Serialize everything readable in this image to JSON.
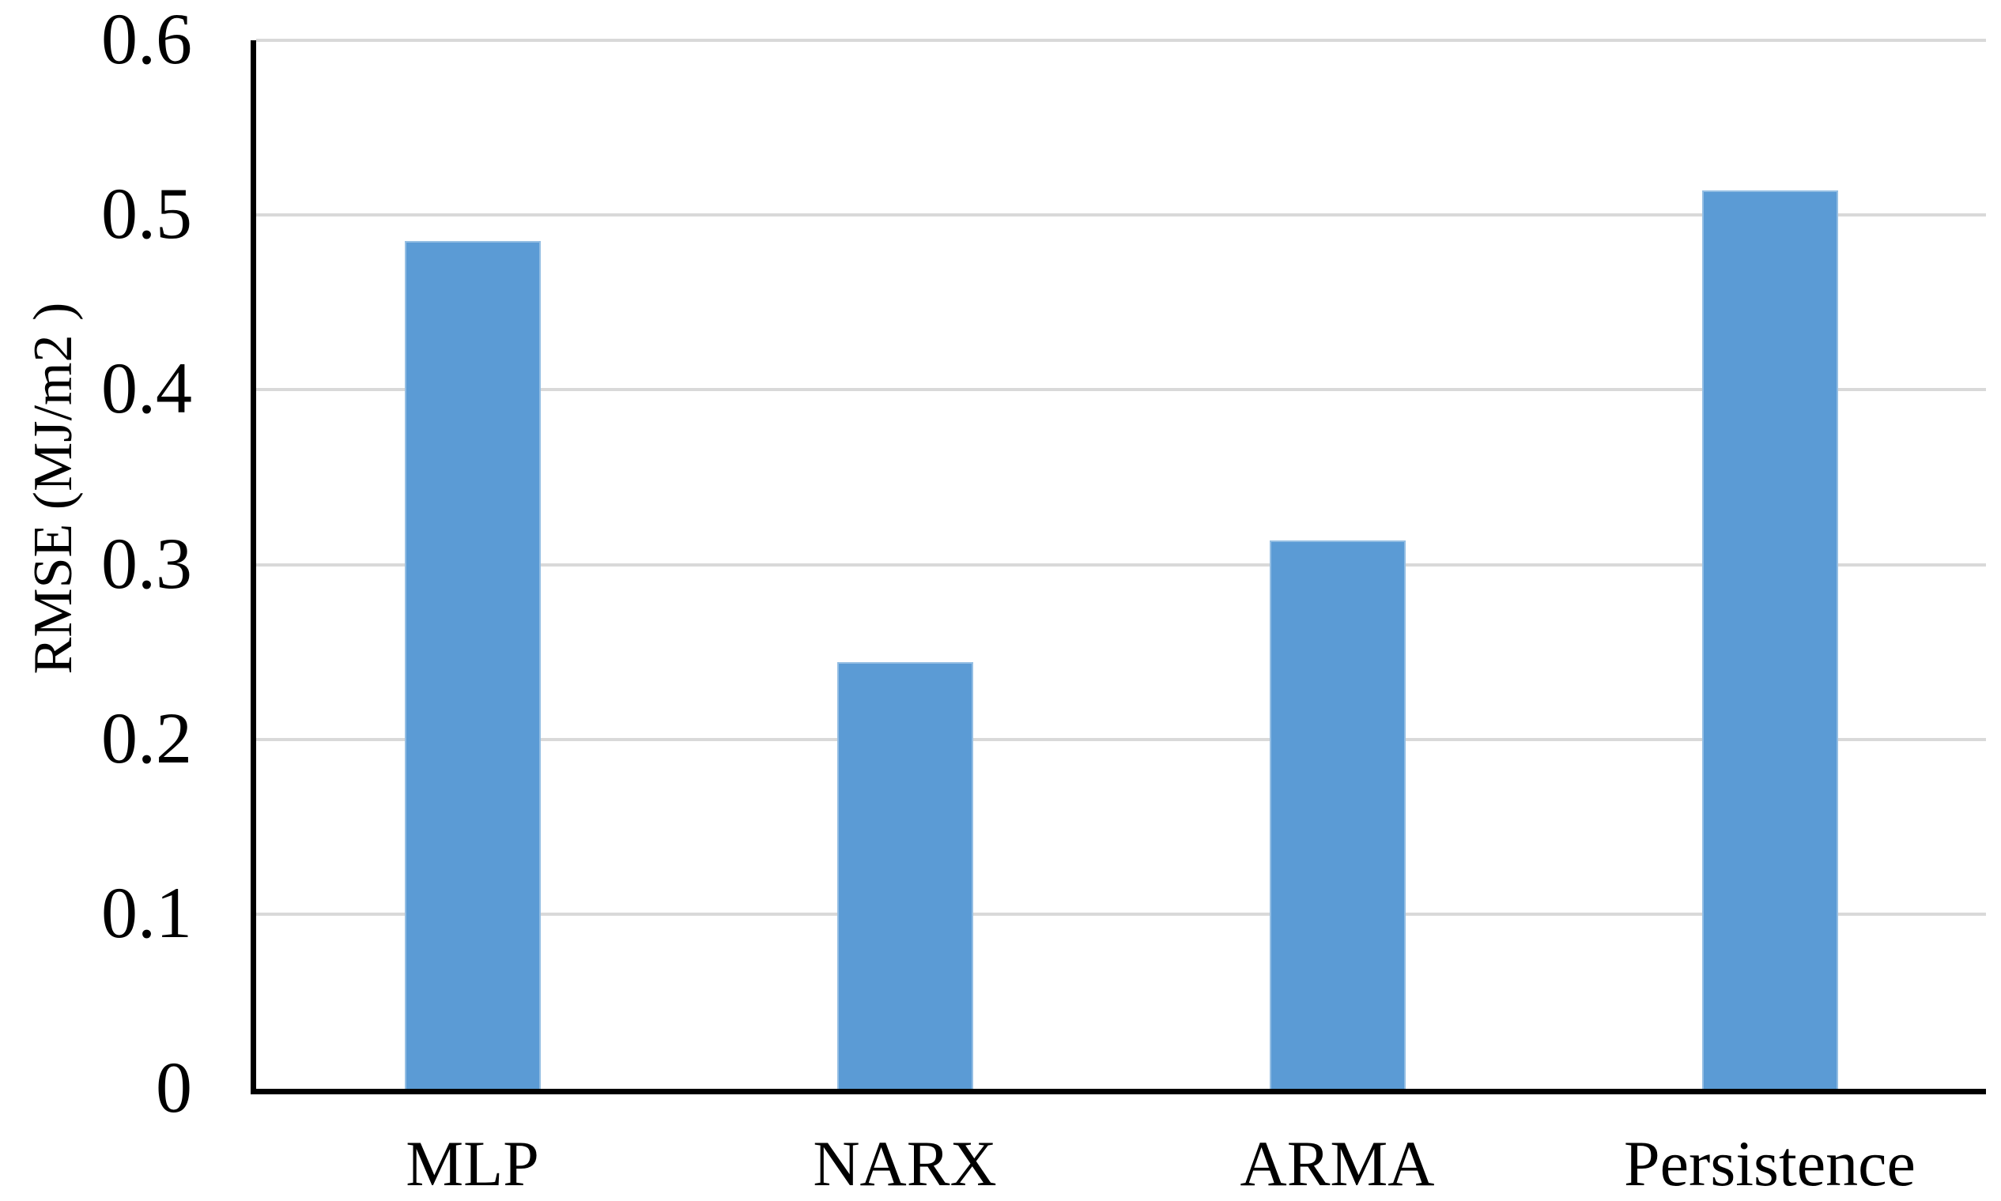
{
  "chart_data": {
    "type": "bar",
    "title": "",
    "categories": [
      "MLP",
      "NARX",
      "ARMA",
      "Persistence"
    ],
    "values": [
      0.485,
      0.244,
      0.314,
      0.514
    ],
    "xlabel": "",
    "ylabel": "RMSE (MJ/m2 )",
    "ylim": [
      0,
      0.6
    ],
    "ytick_step": 0.1,
    "ytick_labels": [
      "0",
      "0.1",
      "0.2",
      "0.3",
      "0.4",
      "0.5",
      "0.6"
    ],
    "grid": true,
    "legend_position": "none",
    "bar_color": "#5b9bd5",
    "gridline_color": "#d9d9d9",
    "axis_color": "#000000",
    "text_color": "#000000",
    "background_color": "#ffffff"
  }
}
